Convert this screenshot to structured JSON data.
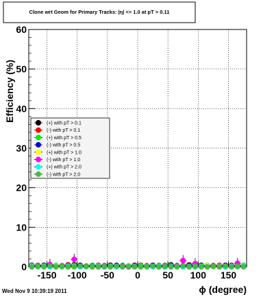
{
  "chart_data": {
    "type": "scatter",
    "title": "Clone wrt Geom for Primary Tracks: |η| <= 1.0 at pT > 0.11",
    "xlabel": "ϕ (degree)",
    "ylabel": "Efficiency (%)",
    "xlim": [
      -180,
      180
    ],
    "ylim": [
      0,
      60
    ],
    "x_ticks": [
      -150,
      -100,
      -50,
      0,
      50,
      100,
      150
    ],
    "y_ticks": [
      0,
      10,
      20,
      30,
      40,
      50,
      60
    ],
    "x_tick_labels": [
      "-150",
      "-100",
      "-50",
      "0",
      "50",
      "100",
      "150"
    ],
    "y_tick_labels": [
      "0",
      "10",
      "20",
      "30",
      "40",
      "50",
      "60"
    ],
    "grid": true,
    "legend_position": "middle-left",
    "series": [
      {
        "name": "(+) with pT > 0.1",
        "color": "#000000",
        "x": [
          -175,
          -165,
          -155,
          -145,
          -135,
          -125,
          -115,
          -105,
          -95,
          -85,
          -75,
          -65,
          -55,
          -45,
          -35,
          -25,
          -15,
          -5,
          5,
          15,
          25,
          35,
          45,
          55,
          65,
          75,
          85,
          95,
          105,
          115,
          125,
          135,
          145,
          155,
          165,
          175
        ],
        "y": [
          0.3,
          0.2,
          0.4,
          0.1,
          0.3,
          0.2,
          0.0,
          0.5,
          0.2,
          0.1,
          0.3,
          0.2,
          0.0,
          0.4,
          0.2,
          0.1,
          0.3,
          0.2,
          0.4,
          0.1,
          0.2,
          0.3,
          0.0,
          0.5,
          0.2,
          0.1,
          0.3,
          0.2,
          0.4,
          0.1,
          0.3,
          0.2,
          0.0,
          0.4,
          0.2,
          0.3
        ]
      },
      {
        "name": "(-) with pT > 0.1",
        "color": "#ff0000",
        "x": [
          -175,
          -165,
          -155,
          -145,
          -135,
          -125,
          -115,
          -105,
          -95,
          -85,
          -75,
          -65,
          -55,
          -45,
          -35,
          -25,
          -15,
          -5,
          5,
          15,
          25,
          35,
          45,
          55,
          65,
          75,
          85,
          95,
          105,
          115,
          125,
          135,
          145,
          155,
          165,
          175
        ],
        "y": [
          0.2,
          0.4,
          0.1,
          0.3,
          0.0,
          0.2,
          0.5,
          0.1,
          0.3,
          0.2,
          0.0,
          0.4,
          0.1,
          0.2,
          0.3,
          0.0,
          0.2,
          0.4,
          0.1,
          0.3,
          0.2,
          0.0,
          0.4,
          0.1,
          0.2,
          0.3,
          0.5,
          0.1,
          0.2,
          0.0,
          0.3,
          0.4,
          0.2,
          0.1,
          0.3,
          0.2
        ]
      },
      {
        "name": "(+) with pT > 0.5",
        "color": "#00ee00",
        "x": [
          -175,
          -165,
          -155,
          -145,
          -135,
          -125,
          -115,
          -105,
          -95,
          -85,
          -75,
          -65,
          -55,
          -45,
          -35,
          -25,
          -15,
          -5,
          5,
          15,
          25,
          35,
          45,
          55,
          65,
          75,
          85,
          95,
          105,
          115,
          125,
          135,
          145,
          155,
          165,
          175
        ],
        "y": [
          0.1,
          0.3,
          0.2,
          0.0,
          0.4,
          0.1,
          0.2,
          0.3,
          0.0,
          0.2,
          0.4,
          0.1,
          0.3,
          0.2,
          0.0,
          0.4,
          0.1,
          0.2,
          0.3,
          0.0,
          0.2,
          0.1,
          0.4,
          0.3,
          0.2,
          0.0,
          0.1,
          0.3,
          0.2,
          0.4,
          0.1,
          0.0,
          0.3,
          0.2,
          0.1,
          0.4
        ]
      },
      {
        "name": "(-) with pT > 0.5",
        "color": "#0000dd",
        "x": [
          -175,
          -165,
          -155,
          -145,
          -135,
          -125,
          -115,
          -105,
          -95,
          -85,
          -75,
          -65,
          -55,
          -45,
          -35,
          -25,
          -15,
          -5,
          5,
          15,
          25,
          35,
          45,
          55,
          65,
          75,
          85,
          95,
          105,
          115,
          125,
          135,
          145,
          155,
          165,
          175
        ],
        "y": [
          0.4,
          0.1,
          0.3,
          0.2,
          0.1,
          0.0,
          0.3,
          0.2,
          0.4,
          0.1,
          0.2,
          0.0,
          0.3,
          0.1,
          0.4,
          0.2,
          0.0,
          0.3,
          0.1,
          0.2,
          0.4,
          0.1,
          0.0,
          0.2,
          0.3,
          0.1,
          0.4,
          0.0,
          0.2,
          0.3,
          0.1,
          0.2,
          0.4,
          0.0,
          0.3,
          0.1
        ]
      },
      {
        "name": "(+) with pT > 1.0",
        "color": "#ffff00",
        "x": [
          -175,
          -165,
          -155,
          -145,
          -135,
          -125,
          -115,
          -105,
          -95,
          -85,
          -75,
          -65,
          -55,
          -45,
          -35,
          -25,
          -15,
          -5,
          5,
          15,
          25,
          35,
          45,
          55,
          65,
          75,
          85,
          95,
          105,
          115,
          125,
          135,
          145,
          155,
          165,
          175
        ],
        "y": [
          0.2,
          0.0,
          0.1,
          0.3,
          0.2,
          0.0,
          0.1,
          0.2,
          0.0,
          0.3,
          0.1,
          0.0,
          0.2,
          0.1,
          0.0,
          0.2,
          0.3,
          0.0,
          0.1,
          0.2,
          0.0,
          0.1,
          0.3,
          0.0,
          0.2,
          0.1,
          0.0,
          0.2,
          0.1,
          0.3,
          0.0,
          0.2,
          0.1,
          0.0,
          0.2,
          0.1
        ]
      },
      {
        "name": "(-) with pT > 1.0",
        "color": "#ff00ff",
        "x": [
          -175,
          -165,
          -155,
          -145,
          -135,
          -125,
          -115,
          -105,
          -95,
          -85,
          -75,
          -65,
          -55,
          -45,
          -35,
          -25,
          -15,
          -5,
          5,
          15,
          25,
          35,
          45,
          55,
          65,
          75,
          85,
          95,
          105,
          115,
          125,
          135,
          145,
          155,
          165,
          175
        ],
        "y": [
          0.0,
          0.2,
          0.1,
          0.6,
          0.0,
          0.3,
          0.1,
          1.9,
          0.0,
          0.2,
          0.1,
          0.0,
          0.3,
          0.0,
          0.1,
          0.2,
          0.0,
          0.1,
          0.0,
          0.2,
          0.1,
          0.0,
          0.3,
          0.0,
          0.2,
          1.6,
          0.0,
          0.8,
          0.1,
          0.0,
          0.2,
          0.1,
          0.0,
          0.3,
          0.9,
          0.1
        ]
      },
      {
        "name": "(+) with pT > 2.0",
        "color": "#00ffff",
        "x": [
          -175,
          -165,
          -155,
          -145,
          -135,
          -125,
          -115,
          -105,
          -95,
          -85,
          -75,
          -65,
          -55,
          -45,
          -35,
          -25,
          -15,
          -5,
          5,
          15,
          25,
          35,
          45,
          55,
          65,
          75,
          85,
          95,
          105,
          115,
          125,
          135,
          145,
          155,
          165,
          175
        ],
        "y": [
          0.1,
          0.0,
          0.2,
          0.0,
          0.1,
          0.0,
          0.2,
          0.1,
          0.0,
          0.0,
          0.1,
          0.2,
          0.0,
          0.1,
          0.0,
          0.0,
          0.2,
          0.1,
          0.0,
          0.1,
          0.0,
          0.2,
          0.0,
          0.1,
          0.0,
          0.0,
          0.1,
          0.0,
          0.2,
          0.0,
          0.1,
          0.0,
          0.0,
          0.1,
          0.0,
          0.2
        ]
      },
      {
        "name": "(-) with pT > 2.0",
        "color": "#44bb44",
        "x": [
          -175,
          -165,
          -155,
          -145,
          -135,
          -125,
          -115,
          -105,
          -95,
          -85,
          -75,
          -65,
          -55,
          -45,
          -35,
          -25,
          -15,
          -5,
          5,
          15,
          25,
          35,
          45,
          55,
          65,
          75,
          85,
          95,
          105,
          115,
          125,
          135,
          145,
          155,
          165,
          175
        ],
        "y": [
          0.0,
          0.1,
          0.0,
          0.2,
          0.0,
          0.1,
          0.0,
          0.0,
          0.2,
          0.1,
          0.0,
          0.0,
          0.1,
          0.0,
          0.2,
          0.0,
          0.1,
          0.0,
          0.0,
          0.1,
          0.2,
          0.0,
          0.1,
          0.0,
          0.0,
          0.2,
          0.0,
          0.1,
          0.0,
          0.0,
          0.1,
          0.0,
          0.2,
          0.0,
          0.1,
          0.0
        ]
      }
    ]
  },
  "footer": {
    "timestamp": "Wed Nov  9 10:39:19 2011"
  }
}
